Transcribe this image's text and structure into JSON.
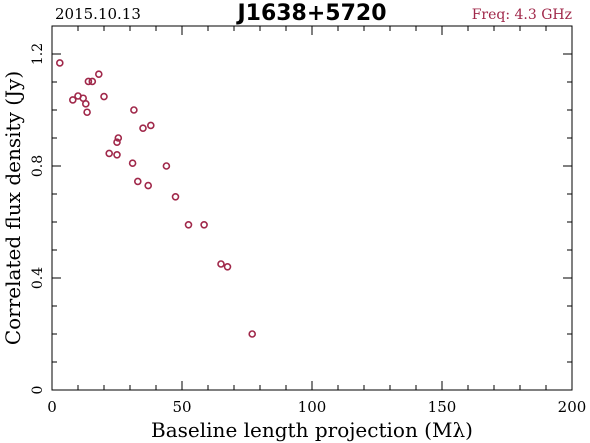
{
  "header": {
    "date": "2015.10.13",
    "source": "J1638+5720",
    "freq": "Freq: 4.3 GHz"
  },
  "colors": {
    "axis": "#000000",
    "marker": "#a0284a",
    "freq": "#a0284a"
  },
  "chart_data": {
    "type": "scatter",
    "title": "J1638+5720",
    "xlabel": "Baseline length projection (Mλ)",
    "ylabel": "Correlated flux density (Jy)",
    "xlim": [
      0,
      200
    ],
    "ylim": [
      0,
      1.3
    ],
    "xticks": [
      0,
      50,
      100,
      150,
      200
    ],
    "xtick_labels": [
      "0",
      "50",
      "100",
      "150",
      "200"
    ],
    "yticks": [
      0,
      0.4,
      0.8,
      1.2
    ],
    "ytick_labels": [
      "0",
      "0.4",
      "0.8",
      "1.2"
    ],
    "grid": false,
    "points": [
      {
        "x": 3.0,
        "y": 1.168
      },
      {
        "x": 8.0,
        "y": 1.036
      },
      {
        "x": 10.0,
        "y": 1.05
      },
      {
        "x": 12.0,
        "y": 1.042
      },
      {
        "x": 13.0,
        "y": 1.022
      },
      {
        "x": 13.5,
        "y": 0.992
      },
      {
        "x": 14.0,
        "y": 1.102
      },
      {
        "x": 15.5,
        "y": 1.102
      },
      {
        "x": 18.0,
        "y": 1.128
      },
      {
        "x": 20.0,
        "y": 1.048
      },
      {
        "x": 22.0,
        "y": 0.845
      },
      {
        "x": 25.0,
        "y": 0.84
      },
      {
        "x": 25.0,
        "y": 0.885
      },
      {
        "x": 25.5,
        "y": 0.9
      },
      {
        "x": 31.0,
        "y": 0.81
      },
      {
        "x": 31.5,
        "y": 1.0
      },
      {
        "x": 33.0,
        "y": 0.745
      },
      {
        "x": 35.0,
        "y": 0.935
      },
      {
        "x": 37.0,
        "y": 0.73
      },
      {
        "x": 38.0,
        "y": 0.945
      },
      {
        "x": 44.0,
        "y": 0.8
      },
      {
        "x": 47.5,
        "y": 0.69
      },
      {
        "x": 52.5,
        "y": 0.59
      },
      {
        "x": 58.5,
        "y": 0.59
      },
      {
        "x": 65.0,
        "y": 0.45
      },
      {
        "x": 67.5,
        "y": 0.44
      },
      {
        "x": 77.0,
        "y": 0.2
      }
    ]
  }
}
